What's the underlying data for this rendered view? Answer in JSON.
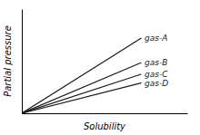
{
  "chart_data": {
    "type": "line",
    "xlabel": "Solubility",
    "ylabel": "Partial pressure",
    "x": [
      0,
      0.72
    ],
    "series": [
      {
        "name": "gas-A",
        "color": "#1a1a1a",
        "values": [
          0,
          0.72
        ]
      },
      {
        "name": "gas-B",
        "color": "#1a1a1a",
        "values": [
          0,
          0.4846153846153846
        ]
      },
      {
        "name": "gas-C",
        "color": "#1a1a1a",
        "values": [
          0,
          0.37384615384615383
        ]
      },
      {
        "name": "gas-D",
        "color": "#1a1a1a",
        "values": [
          0,
          0.2907692307692308
        ]
      }
    ],
    "xlim": [
      0,
      1
    ],
    "ylim": [
      0,
      1
    ],
    "xticks": [],
    "yticks": [],
    "tick_labels": false,
    "grid": false
  }
}
